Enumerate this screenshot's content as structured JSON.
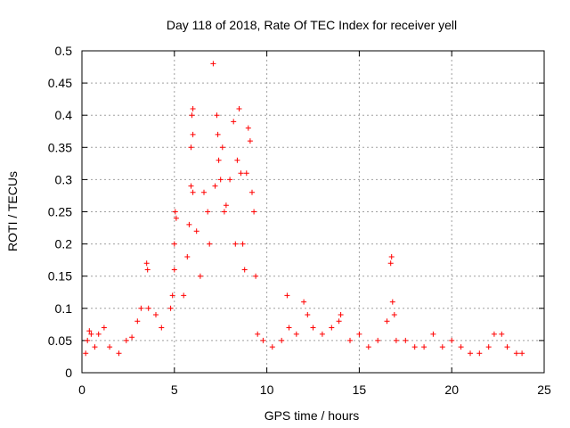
{
  "chart_data": {
    "type": "scatter",
    "title": "Day 118 of 2018, Rate Of TEC Index for receiver yell",
    "xlabel": "GPS time / hours",
    "ylabel": "ROTI / TECUs",
    "xlim": [
      0,
      25
    ],
    "ylim": [
      0,
      0.5
    ],
    "xticks": [
      0,
      5,
      10,
      15,
      20,
      25
    ],
    "yticks": [
      0,
      0.05,
      0.1,
      0.15,
      0.2,
      0.25,
      0.3,
      0.35,
      0.4,
      0.45,
      0.5
    ],
    "grid": true,
    "marker": "+",
    "color": "#ff0000",
    "series": [
      {
        "name": "ROTI",
        "points": [
          [
            0.2,
            0.03
          ],
          [
            0.3,
            0.05
          ],
          [
            0.4,
            0.065
          ],
          [
            0.5,
            0.06
          ],
          [
            0.7,
            0.04
          ],
          [
            0.9,
            0.06
          ],
          [
            1.2,
            0.07
          ],
          [
            1.5,
            0.04
          ],
          [
            2.0,
            0.03
          ],
          [
            2.4,
            0.05
          ],
          [
            2.7,
            0.055
          ],
          [
            3.0,
            0.08
          ],
          [
            3.2,
            0.1
          ],
          [
            3.5,
            0.17
          ],
          [
            3.55,
            0.16
          ],
          [
            3.6,
            0.1
          ],
          [
            4.0,
            0.09
          ],
          [
            4.3,
            0.07
          ],
          [
            4.8,
            0.1
          ],
          [
            4.9,
            0.12
          ],
          [
            5.0,
            0.16
          ],
          [
            5.0,
            0.2
          ],
          [
            5.05,
            0.25
          ],
          [
            5.1,
            0.24
          ],
          [
            5.5,
            0.12
          ],
          [
            5.7,
            0.18
          ],
          [
            5.8,
            0.23
          ],
          [
            5.9,
            0.29
          ],
          [
            6.0,
            0.28
          ],
          [
            5.9,
            0.35
          ],
          [
            5.95,
            0.4
          ],
          [
            6.0,
            0.37
          ],
          [
            6.0,
            0.41
          ],
          [
            6.2,
            0.22
          ],
          [
            6.4,
            0.15
          ],
          [
            6.6,
            0.28
          ],
          [
            6.8,
            0.25
          ],
          [
            6.9,
            0.2
          ],
          [
            7.1,
            0.48
          ],
          [
            7.2,
            0.29
          ],
          [
            7.3,
            0.4
          ],
          [
            7.35,
            0.37
          ],
          [
            7.4,
            0.33
          ],
          [
            7.5,
            0.3
          ],
          [
            7.6,
            0.35
          ],
          [
            7.7,
            0.25
          ],
          [
            7.8,
            0.26
          ],
          [
            8.0,
            0.3
          ],
          [
            8.2,
            0.39
          ],
          [
            8.3,
            0.2
          ],
          [
            8.4,
            0.33
          ],
          [
            8.5,
            0.41
          ],
          [
            8.6,
            0.31
          ],
          [
            8.7,
            0.2
          ],
          [
            8.8,
            0.16
          ],
          [
            8.9,
            0.31
          ],
          [
            9.0,
            0.38
          ],
          [
            9.1,
            0.36
          ],
          [
            9.2,
            0.28
          ],
          [
            9.3,
            0.25
          ],
          [
            9.4,
            0.15
          ],
          [
            9.5,
            0.06
          ],
          [
            9.8,
            0.05
          ],
          [
            10.3,
            0.04
          ],
          [
            10.8,
            0.05
          ],
          [
            11.1,
            0.12
          ],
          [
            11.2,
            0.07
          ],
          [
            11.6,
            0.06
          ],
          [
            12.0,
            0.11
          ],
          [
            12.2,
            0.09
          ],
          [
            12.5,
            0.07
          ],
          [
            13.0,
            0.06
          ],
          [
            13.5,
            0.07
          ],
          [
            13.9,
            0.08
          ],
          [
            14.0,
            0.09
          ],
          [
            14.5,
            0.05
          ],
          [
            15.0,
            0.06
          ],
          [
            15.5,
            0.04
          ],
          [
            16.0,
            0.05
          ],
          [
            16.5,
            0.08
          ],
          [
            16.7,
            0.17
          ],
          [
            16.75,
            0.18
          ],
          [
            16.8,
            0.11
          ],
          [
            16.9,
            0.09
          ],
          [
            17.0,
            0.05
          ],
          [
            17.5,
            0.05
          ],
          [
            18.0,
            0.04
          ],
          [
            18.5,
            0.04
          ],
          [
            19.0,
            0.06
          ],
          [
            19.5,
            0.04
          ],
          [
            20.0,
            0.05
          ],
          [
            20.5,
            0.04
          ],
          [
            21.0,
            0.03
          ],
          [
            21.5,
            0.03
          ],
          [
            22.0,
            0.04
          ],
          [
            22.3,
            0.06
          ],
          [
            22.7,
            0.06
          ],
          [
            23.0,
            0.04
          ],
          [
            23.5,
            0.03
          ],
          [
            23.8,
            0.03
          ]
        ]
      }
    ]
  }
}
